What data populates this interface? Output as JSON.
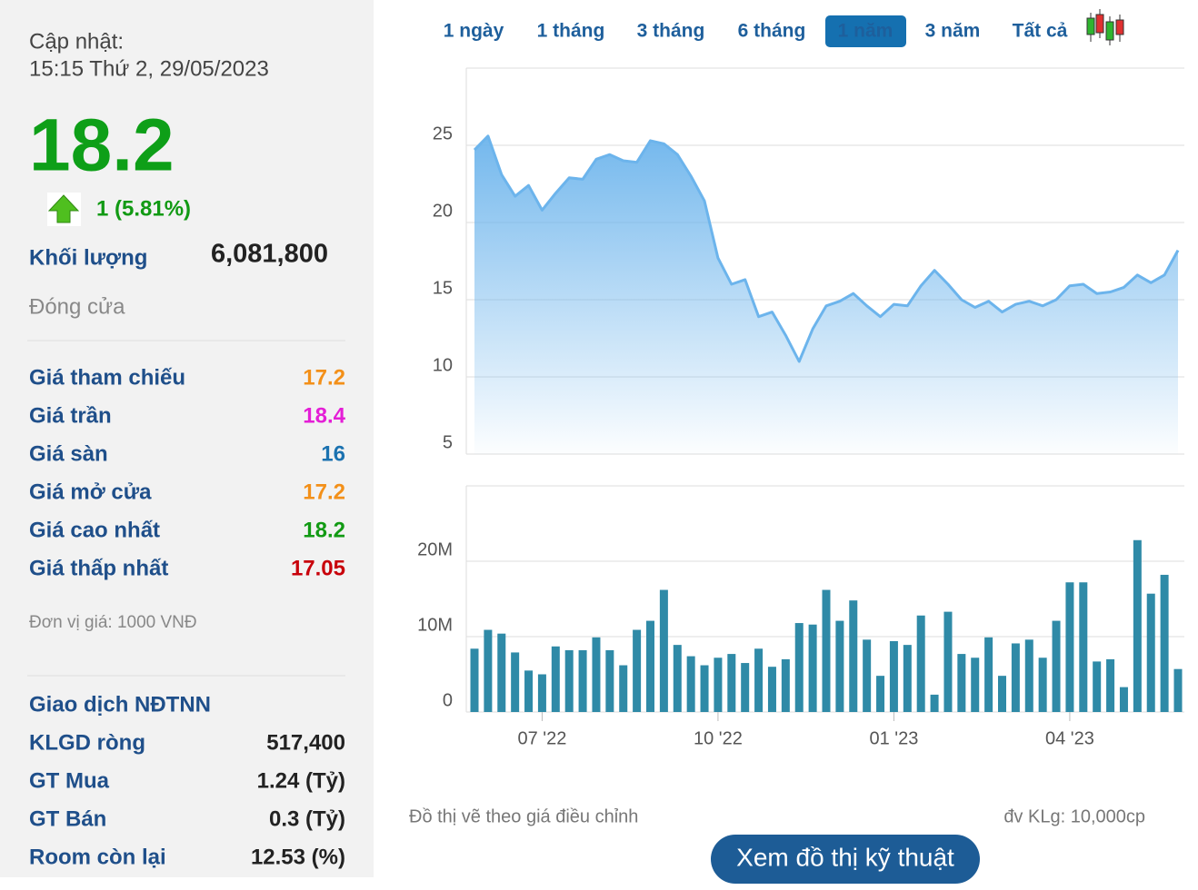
{
  "panel": {
    "updated_label": "Cập nhật:",
    "updated_time": "15:15 Thứ 2, 29/05/2023",
    "price": 18.2,
    "change": "1 (5.81%)",
    "volume_label": "Khối lượng",
    "volume": "6,081,800",
    "status": "Đóng cửa",
    "prices": [
      {
        "label": "Giá tham chiếu",
        "value": 17.2,
        "color": "#f39019"
      },
      {
        "label": "Giá trần",
        "value": 18.4,
        "color": "#e41fd6"
      },
      {
        "label": "Giá sàn",
        "value": 16,
        "color": "#1b72b0"
      },
      {
        "label": "Giá mở cửa",
        "value": 17.2,
        "color": "#f39019"
      },
      {
        "label": "Giá cao nhất",
        "value": 18.2,
        "color": "#129a14"
      },
      {
        "label": "Giá thấp nhất",
        "value": 17.05,
        "color": "#c8000a"
      }
    ],
    "unit": "Đơn vị giá: 1000 VNĐ",
    "foreign_title": "Giao dịch NĐTNN",
    "foreign": [
      {
        "label": "KLGD ròng",
        "value": "517,400"
      },
      {
        "label": "GT Mua",
        "value": "1.24 (Tỷ)"
      },
      {
        "label": "GT Bán",
        "value": "0.3 (Tỷ)"
      },
      {
        "label": "Room còn lại",
        "value": "12.53 (%)"
      }
    ]
  },
  "tabs": [
    "1 ngày",
    "1 tháng",
    "3 tháng",
    "6 tháng",
    "1 năm",
    "3 năm",
    "Tất cả"
  ],
  "active_tab": 4,
  "chart_data": [
    {
      "type": "area",
      "color": "#6cb4ec",
      "values": [
        24.7,
        25.6,
        23.1,
        21.7,
        22.4,
        20.8,
        21.9,
        22.9,
        22.8,
        24.1,
        24.4,
        24.0,
        23.9,
        25.3,
        25.1,
        24.4,
        23.0,
        21.4,
        17.7,
        16.0,
        16.3,
        13.9,
        14.2,
        12.7,
        11.0,
        13.1,
        14.6,
        14.9,
        15.4,
        14.6,
        13.9,
        14.7,
        14.6,
        15.9,
        16.9,
        16.0,
        15.0,
        14.5,
        14.9,
        14.2,
        14.7,
        14.9,
        14.6,
        15.0,
        15.9,
        16.0,
        15.4,
        15.5,
        15.8,
        16.6,
        16.1,
        16.6,
        18.2
      ],
      "ylim": [
        5,
        30
      ],
      "yticks": [
        5,
        10,
        15,
        20,
        25
      ],
      "grid": true
    },
    {
      "type": "bar",
      "color": "#2f8aa7",
      "categories": [
        null,
        null,
        null,
        null,
        null,
        "07 '22",
        null,
        null,
        null,
        null,
        null,
        null,
        null,
        null,
        null,
        null,
        null,
        null,
        "10 '22",
        null,
        null,
        null,
        null,
        null,
        null,
        null,
        null,
        null,
        null,
        null,
        null,
        "01 '23",
        null,
        null,
        null,
        null,
        null,
        null,
        null,
        null,
        null,
        null,
        null,
        null,
        "04 '23",
        null,
        null,
        null,
        null,
        null,
        null,
        null,
        null
      ],
      "values": [
        8400000,
        10900000,
        10400000,
        7900000,
        5500000,
        5000000,
        8700000,
        8200000,
        8200000,
        9900000,
        8200000,
        6200000,
        10900000,
        12100000,
        16200000,
        8900000,
        7400000,
        6200000,
        7200000,
        7700000,
        6500000,
        8400000,
        6000000,
        7000000,
        11800000,
        11600000,
        16200000,
        12100000,
        14800000,
        9600000,
        4800000,
        9400000,
        8900000,
        12800000,
        2300000,
        13300000,
        7700000,
        7200000,
        9900000,
        4800000,
        9100000,
        9600000,
        7200000,
        12100000,
        17200000,
        17200000,
        6700000,
        7000000,
        3300000,
        22800000,
        15700000,
        18200000,
        5700000
      ],
      "ylim": [
        0,
        30000000
      ],
      "yticks": [
        0,
        {
          "value": 10000000,
          "label": "10M"
        },
        {
          "value": 20000000,
          "label": "20M"
        }
      ],
      "grid": true
    }
  ],
  "footer": {
    "note": "Đồ thị vẽ theo giá điều chỉnh",
    "unit": "đv KLg: 10,000cp",
    "button": "Xem đồ thị kỹ thuật"
  }
}
